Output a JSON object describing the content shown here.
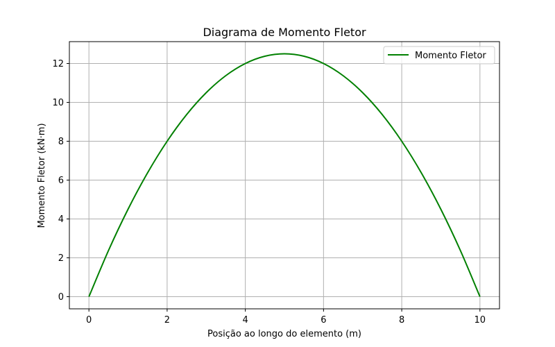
{
  "chart_data": {
    "type": "line",
    "title": "Diagrama de Momento Fletor",
    "xlabel": "Posição ao longo do elemento (m)",
    "ylabel": "Momento Fletor (kN·m)",
    "xlim": [
      -0.5,
      10.5
    ],
    "ylim": [
      -0.625,
      13.125
    ],
    "xticks": [
      0,
      2,
      4,
      6,
      8,
      10
    ],
    "yticks": [
      0,
      2,
      4,
      6,
      8,
      10,
      12
    ],
    "grid": true,
    "legend_position": "top-right",
    "series": [
      {
        "name": "Momento Fletor",
        "color": "#008000",
        "x": [
          0,
          0.5,
          1,
          1.5,
          2,
          2.5,
          3,
          3.5,
          4,
          4.5,
          5,
          5.5,
          6,
          6.5,
          7,
          7.5,
          8,
          8.5,
          9,
          9.5,
          10
        ],
        "y": [
          0,
          2.375,
          4.5,
          6.375,
          8,
          9.375,
          10.5,
          11.375,
          12,
          12.375,
          12.5,
          12.375,
          12,
          11.375,
          10.5,
          9.375,
          8,
          6.375,
          4.5,
          2.375,
          0
        ]
      }
    ]
  }
}
